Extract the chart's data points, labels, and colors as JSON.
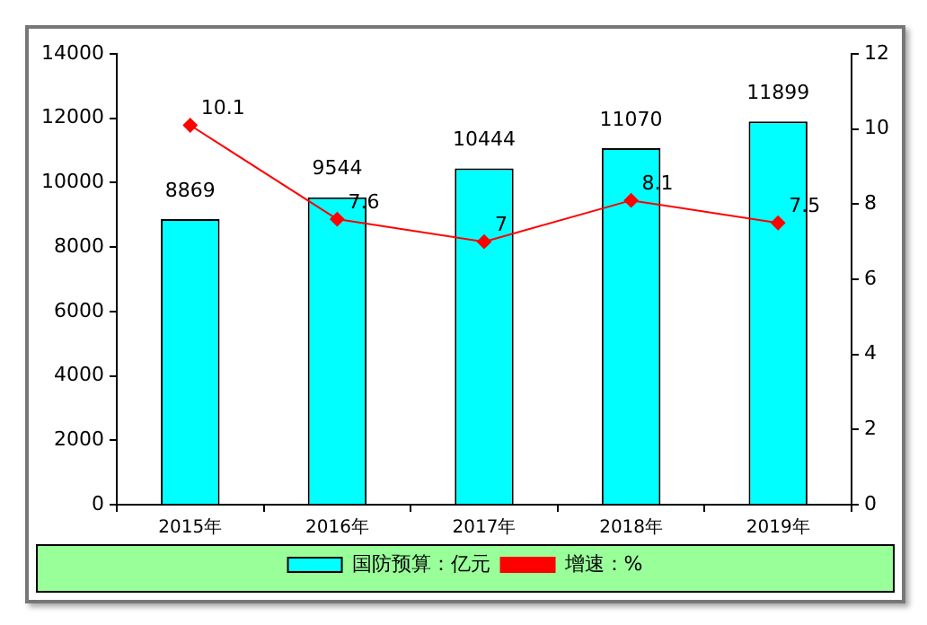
{
  "chart_data": {
    "type": "bar",
    "categories": [
      "2015年",
      "2016年",
      "2017年",
      "2018年",
      "2019年"
    ],
    "series": [
      {
        "name": "国防预算：亿元",
        "color": "#00ffff",
        "values": [
          8869,
          9544,
          10444,
          11070,
          11899
        ]
      },
      {
        "name": "增速：%",
        "type": "line",
        "axis": "y2",
        "color": "#ff0000",
        "values": [
          10.1,
          7.6,
          7,
          8.1,
          7.5
        ]
      }
    ],
    "ylim": [
      0,
      14000
    ],
    "yticks": [
      0,
      2000,
      4000,
      6000,
      8000,
      10000,
      12000,
      14000
    ],
    "y2lim": [
      0,
      12
    ],
    "y2ticks": [
      0,
      2,
      4,
      6,
      8,
      10,
      12
    ],
    "data_labels": true,
    "legend": "bottom",
    "marker": "diamond",
    "line_style": "solid"
  }
}
